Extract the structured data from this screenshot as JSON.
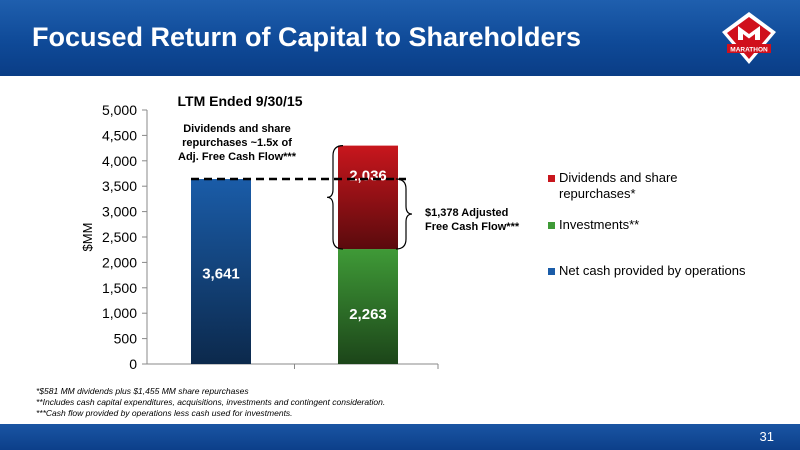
{
  "slide": {
    "title": "Focused Return of Capital to Shareholders",
    "page_number": "31",
    "colors": {
      "header_blue": "#0f4a98",
      "bar_blue": "#1a5ca8",
      "bar_red": "#c8161d",
      "bar_green": "#3f9a37"
    },
    "footnotes": [
      "*$581 MM dividends plus $1,455 MM share repurchases",
      "**Includes cash capital expenditures, acquisitions, investments and contingent consideration.",
      "***Cash flow provided by operations less cash used for investments."
    ],
    "logo": {
      "text": "MARATHON",
      "icon": "marathon-m-logo"
    }
  },
  "chart_data": {
    "type": "bar",
    "title": "LTM Ended 9/30/15",
    "ylabel": "$MM",
    "xlabel": "",
    "ylim": [
      0,
      5000
    ],
    "yticks": [
      "5,000",
      "4,500",
      "4,000",
      "3,500",
      "3,000",
      "2,500",
      "2,000",
      "1,500",
      "1,000",
      "500",
      "0"
    ],
    "ytick_values": [
      5000,
      4500,
      4000,
      3500,
      3000,
      2500,
      2000,
      1500,
      1000,
      500,
      0
    ],
    "grid": false,
    "legend_position": "right",
    "series": [
      {
        "name": "Net cash provided by operations",
        "color": "#1a5ca8",
        "values": [
          3641,
          0
        ],
        "labels": [
          "3,641",
          ""
        ]
      },
      {
        "name": "Investments**",
        "color": "#3f9a37",
        "values": [
          0,
          2263
        ],
        "labels": [
          "",
          "2,263"
        ]
      },
      {
        "name": "Dividends and share repurchases*",
        "color": "#c8161d",
        "values": [
          0,
          2036
        ],
        "labels": [
          "",
          "2,036"
        ]
      }
    ],
    "legend": [
      {
        "label": "Dividends and share repurchases*",
        "color": "#c8161d"
      },
      {
        "label": "Investments**",
        "color": "#3f9a37"
      },
      {
        "label": "Net cash provided by operations",
        "color": "#1a5ca8"
      }
    ],
    "annotations": {
      "left_callout": [
        "Dividends and share",
        "repurchases ~1.5x of",
        "Adj. Free Cash Flow***"
      ],
      "right_callout": [
        "$1,378 Adjusted",
        "Free Cash Flow***"
      ],
      "dashed_line_value": 3641
    }
  }
}
